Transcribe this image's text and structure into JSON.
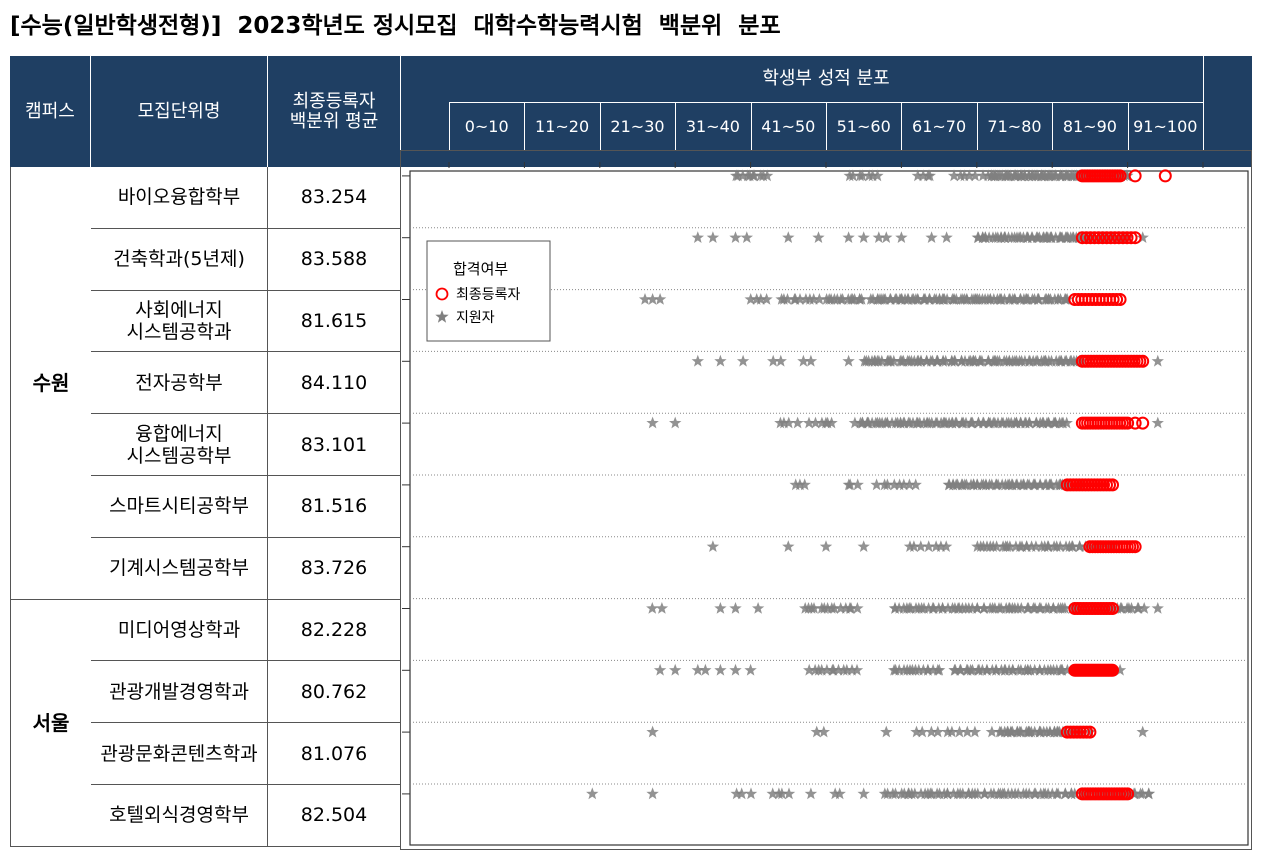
{
  "title": "[수능(일반학생전형)]  2023학년도 정시모집  대학수학능력시험  백분위  분포",
  "header": {
    "campus": "캠퍼스",
    "unit": "모집단위명",
    "avg_line1": "최종등록자",
    "avg_line2": "백분위  평균",
    "dist": "학생부  성적  분포",
    "bins": [
      "0~10",
      "11~20",
      "21~30",
      "31~40",
      "41~50",
      "51~60",
      "61~70",
      "71~80",
      "81~90",
      "91~100"
    ]
  },
  "campuses": [
    {
      "name": "수원"
    },
    {
      "name": "서울"
    }
  ],
  "rows": [
    {
      "campus": "수원",
      "unit_lines": [
        "바이오융합학부"
      ],
      "avg": "83.254"
    },
    {
      "campus": "수원",
      "unit_lines": [
        "건축학과(5년제)"
      ],
      "avg": "83.588"
    },
    {
      "campus": "수원",
      "unit_lines": [
        "사회에너지",
        "시스템공학과"
      ],
      "avg": "81.615"
    },
    {
      "campus": "수원",
      "unit_lines": [
        "전자공학부"
      ],
      "avg": "84.110"
    },
    {
      "campus": "수원",
      "unit_lines": [
        "융합에너지",
        "시스템공학부"
      ],
      "avg": "83.101"
    },
    {
      "campus": "수원",
      "unit_lines": [
        "스마트시티공학부"
      ],
      "avg": "81.516"
    },
    {
      "campus": "수원",
      "unit_lines": [
        "기계시스템공학부"
      ],
      "avg": "83.726"
    },
    {
      "campus": "서울",
      "unit_lines": [
        "미디어영상학과"
      ],
      "avg": "82.228"
    },
    {
      "campus": "서울",
      "unit_lines": [
        "관광개발경영학과"
      ],
      "avg": "80.762"
    },
    {
      "campus": "서울",
      "unit_lines": [
        "관광문화콘텐츠학과"
      ],
      "avg": "81.076"
    },
    {
      "campus": "서울",
      "unit_lines": [
        "호텔외식경영학부"
      ],
      "avg": "82.504"
    }
  ],
  "legend": {
    "title": "합격여부",
    "registered": "최종등록자",
    "applicant": "지원자"
  },
  "colors": {
    "header_bg": "#1f3f63",
    "registered": "#ff0000",
    "applicant": "#808080"
  },
  "chart_data": {
    "type": "scatter",
    "title": "학생부  성적  분포",
    "xlim": [
      0,
      100
    ],
    "categories": [
      "바이오융합학부",
      "건축학과(5년제)",
      "사회에너지 시스템공학과",
      "전자공학부",
      "융합에너지 시스템공학부",
      "스마트시티공학부",
      "기계시스템공학부",
      "미디어영상학과",
      "관광개발경영학과",
      "관광문화콘텐츠학과",
      "호텔외식경영학부"
    ],
    "series": [
      {
        "name": "지원자",
        "marker": "star",
        "rows": [
          {
            "clusters": [
              [
                38,
                42,
                10
              ],
              [
                53,
                57,
                7
              ],
              [
                62,
                64,
                4
              ],
              [
                67,
                72,
                8
              ],
              [
                72,
                90,
                80
              ]
            ],
            "points": []
          },
          {
            "clusters": [
              [
                70,
                90,
                70
              ],
              [
                79,
                84,
                6
              ]
            ],
            "points": [
              33,
              35,
              38,
              39.5,
              45,
              49,
              53,
              55,
              57,
              58,
              60,
              64,
              66,
              92
            ]
          },
          {
            "clusters": [
              [
                40,
                42,
                4
              ],
              [
                44,
                49,
                10
              ],
              [
                50,
                55,
                14
              ],
              [
                56,
                82,
                90
              ]
            ],
            "points": [
              26,
              27,
              28
            ]
          },
          {
            "clusters": [
              [
                55,
                84,
                90
              ]
            ],
            "points": [
              33,
              36,
              39,
              43,
              44,
              47,
              48,
              53,
              94
            ]
          },
          {
            "clusters": [
              [
                44,
                46,
                4
              ],
              [
                48,
                51,
                6
              ],
              [
                54,
                82,
                90
              ]
            ],
            "points": [
              27,
              30,
              94
            ]
          },
          {
            "clusters": [
              [
                46,
                47,
                3
              ],
              [
                53,
                54,
                3
              ],
              [
                57,
                62,
                8
              ],
              [
                66,
                84,
                60
              ]
            ],
            "points": []
          },
          {
            "clusters": [
              [
                70,
                88,
                40
              ],
              [
                61,
                66,
                7
              ]
            ],
            "points": [
              35,
              45,
              50,
              55
            ]
          },
          {
            "clusters": [
              [
                27,
                28,
                2
              ],
              [
                47,
                54,
                14
              ],
              [
                59,
                92,
                80
              ]
            ],
            "points": [
              36,
              38,
              41,
              94
            ]
          },
          {
            "clusters": [
              [
                48,
                54,
                12
              ],
              [
                59,
                65,
                15
              ],
              [
                67,
                82,
                40
              ]
            ],
            "points": [
              28,
              30,
              33,
              34,
              36,
              38,
              40,
              89
            ]
          },
          {
            "clusters": [
              [
                49,
                50,
                2
              ],
              [
                63,
                70,
                8
              ],
              [
                73,
                84,
                40
              ]
            ],
            "points": [
              27,
              58,
              62,
              72,
              85,
              92
            ]
          },
          {
            "clusters": [
              [
                38,
                40,
                3
              ],
              [
                43,
                45,
                4
              ],
              [
                51,
                52,
                2
              ],
              [
                58,
                93,
                80
              ]
            ],
            "points": [
              19,
              27,
              48,
              55
            ]
          }
        ]
      },
      {
        "name": "최종등록자",
        "marker": "circle",
        "rows": [
          {
            "range": [
              84,
              89
            ],
            "n": 16,
            "extra": [
              91,
              95
            ]
          },
          {
            "range": [
              84,
              91
            ],
            "n": 14,
            "extra": []
          },
          {
            "range": [
              83,
              89
            ],
            "n": 14,
            "extra": []
          },
          {
            "range": [
              84,
              92
            ],
            "n": 22,
            "extra": []
          },
          {
            "range": [
              84,
              90
            ],
            "n": 18,
            "extra": [
              91,
              92
            ]
          },
          {
            "range": [
              82,
              88
            ],
            "n": 16,
            "extra": []
          },
          {
            "range": [
              85,
              91
            ],
            "n": 18,
            "extra": []
          },
          {
            "range": [
              83,
              88
            ],
            "n": 14,
            "extra": []
          },
          {
            "range": [
              83,
              88
            ],
            "n": 24,
            "extra": []
          },
          {
            "range": [
              82,
              85
            ],
            "n": 8,
            "extra": []
          },
          {
            "range": [
              84,
              90
            ],
            "n": 18,
            "extra": []
          }
        ]
      }
    ]
  }
}
